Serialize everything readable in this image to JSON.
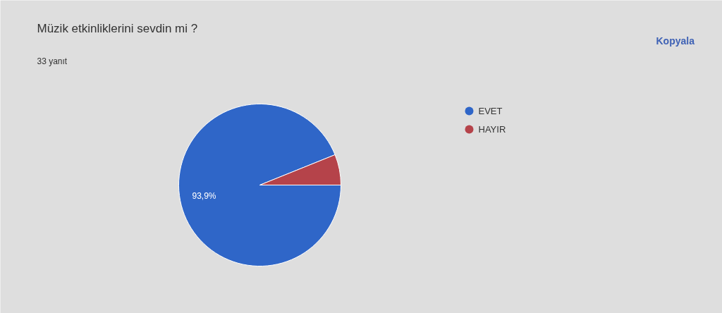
{
  "chart_data": {
    "type": "pie",
    "title": "Müzik etkinliklerini sevdin mi ?",
    "subtitle": "33 yanıt",
    "categories": [
      "EVET",
      "HAYIR"
    ],
    "values": [
      93.9,
      6.1
    ],
    "colors": [
      "#2f66c8",
      "#b5434a"
    ],
    "value_labels": [
      "93,9%",
      null
    ],
    "legend": "right",
    "annotations": [
      "Kopyala"
    ]
  }
}
